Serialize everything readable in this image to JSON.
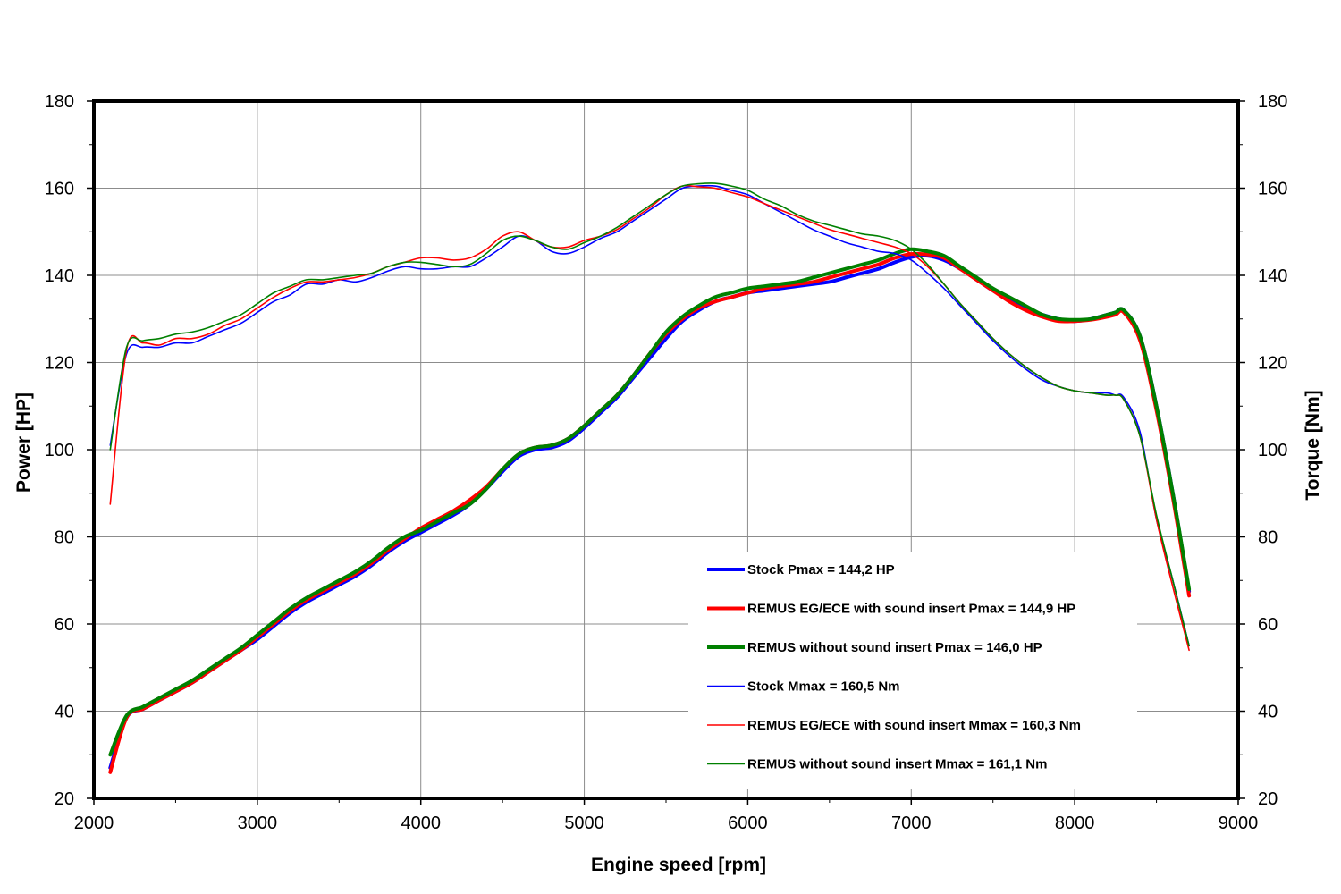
{
  "chart_data": {
    "type": "line",
    "title": "",
    "xlabel": "Engine speed [rpm]",
    "ylabel": "Power [HP]",
    "y2label": "Torque [Nm]",
    "xlim": [
      2000,
      9000
    ],
    "ylim": [
      20,
      180
    ],
    "y2lim": [
      20,
      180
    ],
    "x_ticks": [
      "2000",
      "3000",
      "4000",
      "5000",
      "6000",
      "7000",
      "8000",
      "9000"
    ],
    "y_ticks": [
      "20",
      "40",
      "60",
      "80",
      "100",
      "120",
      "140",
      "160",
      "180"
    ],
    "y2_ticks": [
      "20",
      "40",
      "60",
      "80",
      "100",
      "120",
      "140",
      "160",
      "180"
    ],
    "grid": true,
    "legend_position": "bottom-right",
    "x": [
      2100,
      2200,
      2300,
      2400,
      2500,
      2600,
      2700,
      2800,
      2900,
      3000,
      3100,
      3200,
      3300,
      3400,
      3500,
      3600,
      3700,
      3800,
      3900,
      4000,
      4100,
      4200,
      4300,
      4400,
      4500,
      4600,
      4700,
      4800,
      4900,
      5000,
      5100,
      5200,
      5300,
      5400,
      5500,
      5600,
      5700,
      5800,
      5900,
      6000,
      6100,
      6200,
      6300,
      6400,
      6500,
      6600,
      6700,
      6800,
      6900,
      7000,
      7100,
      7200,
      7300,
      7400,
      7500,
      7600,
      7700,
      7800,
      7900,
      8000,
      8100,
      8200,
      8250,
      8300,
      8400,
      8500,
      8600,
      8700
    ],
    "series": [
      {
        "name": "Stock Pmax = 144,2 HP",
        "axis": "power",
        "color": "#0000ff",
        "width": 4,
        "values": [
          27,
          38.5,
          40.5,
          42.5,
          44.5,
          46.5,
          49,
          51.5,
          54,
          56.5,
          59.5,
          62.5,
          65,
          67,
          69,
          71,
          73.5,
          76.5,
          79,
          81,
          83,
          85,
          87.5,
          91,
          95,
          98.5,
          100,
          100.5,
          102,
          105,
          108.5,
          112,
          116.5,
          121,
          125.5,
          129.5,
          132,
          134,
          135,
          136,
          136.5,
          137,
          137.5,
          138,
          138.5,
          139.5,
          140.5,
          141.5,
          143,
          144.2,
          144.5,
          143.5,
          141.5,
          139,
          136.5,
          134.5,
          132.5,
          131,
          130,
          129.5,
          130,
          131,
          131.5,
          132,
          126,
          110,
          90,
          67.5
        ]
      },
      {
        "name": "REMUS EG/ECE with sound insert Pmax =  144,9 HP",
        "axis": "power",
        "color": "#ff0000",
        "width": 4,
        "values": [
          26,
          38.5,
          40.5,
          42.5,
          44.5,
          46.5,
          49,
          51.5,
          54,
          57,
          60,
          63,
          65.5,
          67.5,
          69.5,
          71.5,
          74,
          77,
          79.5,
          82,
          84,
          86,
          88.5,
          91.5,
          95.5,
          99,
          100.5,
          101,
          102.5,
          105.5,
          109,
          112.5,
          117,
          122,
          126.5,
          130,
          132.5,
          134,
          135,
          136,
          137,
          137.5,
          138,
          138.5,
          139.5,
          140.5,
          141.5,
          142.5,
          144,
          144.9,
          144.8,
          144,
          141.5,
          139,
          136.5,
          134,
          132,
          130.5,
          129.5,
          129.5,
          129.8,
          130.5,
          131,
          131.5,
          125,
          109,
          89,
          66.5
        ]
      },
      {
        "name": "REMUS without sound insert Pmax = 146,0 HP",
        "axis": "power",
        "color": "#008000",
        "width": 4,
        "values": [
          30,
          39,
          41,
          43,
          45,
          47,
          49.5,
          52,
          54.5,
          57.5,
          60.5,
          63.5,
          66,
          68,
          70,
          72,
          74.5,
          77.5,
          80,
          81.5,
          83.5,
          85.5,
          87.5,
          91,
          95.5,
          99,
          100.5,
          101,
          102.5,
          105.5,
          109,
          112.5,
          117,
          122,
          127,
          130.5,
          133,
          135,
          136,
          137,
          137.5,
          138,
          138.5,
          139.5,
          140.5,
          141.5,
          142.5,
          143.5,
          145,
          146,
          145.5,
          144.5,
          142,
          139.5,
          137,
          135,
          133,
          131,
          130,
          129.8,
          130,
          131,
          131.5,
          132,
          126,
          110,
          90,
          68
        ]
      },
      {
        "name": "Stock Mmax = 160,5 Nm",
        "axis": "torque",
        "color": "#0000ff",
        "width": 1.6,
        "values": [
          101,
          122,
          123.5,
          123.5,
          124.5,
          124.5,
          126,
          127.5,
          129,
          131.5,
          134,
          135.5,
          138,
          138,
          139,
          138.5,
          139.5,
          141,
          142,
          141.5,
          141.5,
          142,
          142,
          144,
          146.5,
          149,
          148,
          145.5,
          145,
          146.5,
          148.5,
          150,
          152.5,
          155,
          157.5,
          160,
          160.5,
          160.5,
          159.5,
          158.5,
          156.5,
          154.5,
          152.5,
          150.5,
          149,
          147.5,
          146.5,
          145.5,
          145,
          143.5,
          140.5,
          137,
          133,
          129,
          125,
          121.5,
          118.5,
          116,
          114.5,
          113.5,
          113,
          113,
          112.5,
          112,
          104,
          84,
          70,
          55
        ]
      },
      {
        "name": "REMUS EG/ECE with sound insert Mmax = 160,3 Nm",
        "axis": "torque",
        "color": "#ff0000",
        "width": 1.6,
        "values": [
          87.5,
          123,
          124.5,
          124,
          125.5,
          125.5,
          126.5,
          128.5,
          130,
          132.5,
          135,
          137,
          138.5,
          138.5,
          139,
          139.5,
          140.5,
          142,
          143,
          144,
          144,
          143.5,
          144,
          146,
          149,
          150,
          148,
          146.5,
          146.5,
          148,
          149,
          150.5,
          153,
          155.5,
          158.5,
          160.5,
          160.3,
          160,
          159,
          158,
          156.5,
          155,
          153.5,
          152,
          150.5,
          149.5,
          148.5,
          147.5,
          146.5,
          145,
          142,
          138,
          133.5,
          129.5,
          125.5,
          122,
          119,
          116.5,
          114.5,
          113.5,
          113,
          112.5,
          112.5,
          111.5,
          103,
          84,
          68.5,
          54
        ]
      },
      {
        "name": "REMUS without sound insert Mmax = 161,1 Nm",
        "axis": "torque",
        "color": "#008000",
        "width": 1.6,
        "values": [
          100,
          123.5,
          125,
          125.5,
          126.5,
          127,
          128,
          129.5,
          131,
          133.5,
          136,
          137.5,
          139,
          139,
          139.5,
          140,
          140.5,
          142,
          143,
          143,
          142.5,
          142,
          142.5,
          145,
          148,
          149,
          148,
          146.5,
          146,
          147.5,
          149,
          151,
          153.5,
          156,
          158.5,
          160.5,
          161,
          161.1,
          160.5,
          159.5,
          157.5,
          156,
          154,
          152.5,
          151.5,
          150.5,
          149.5,
          149,
          148,
          146,
          142.5,
          138,
          133.5,
          129.5,
          125.5,
          122,
          119,
          116.5,
          114.5,
          113.5,
          113,
          112.5,
          112.5,
          111.5,
          103,
          85,
          70,
          55
        ]
      }
    ]
  }
}
